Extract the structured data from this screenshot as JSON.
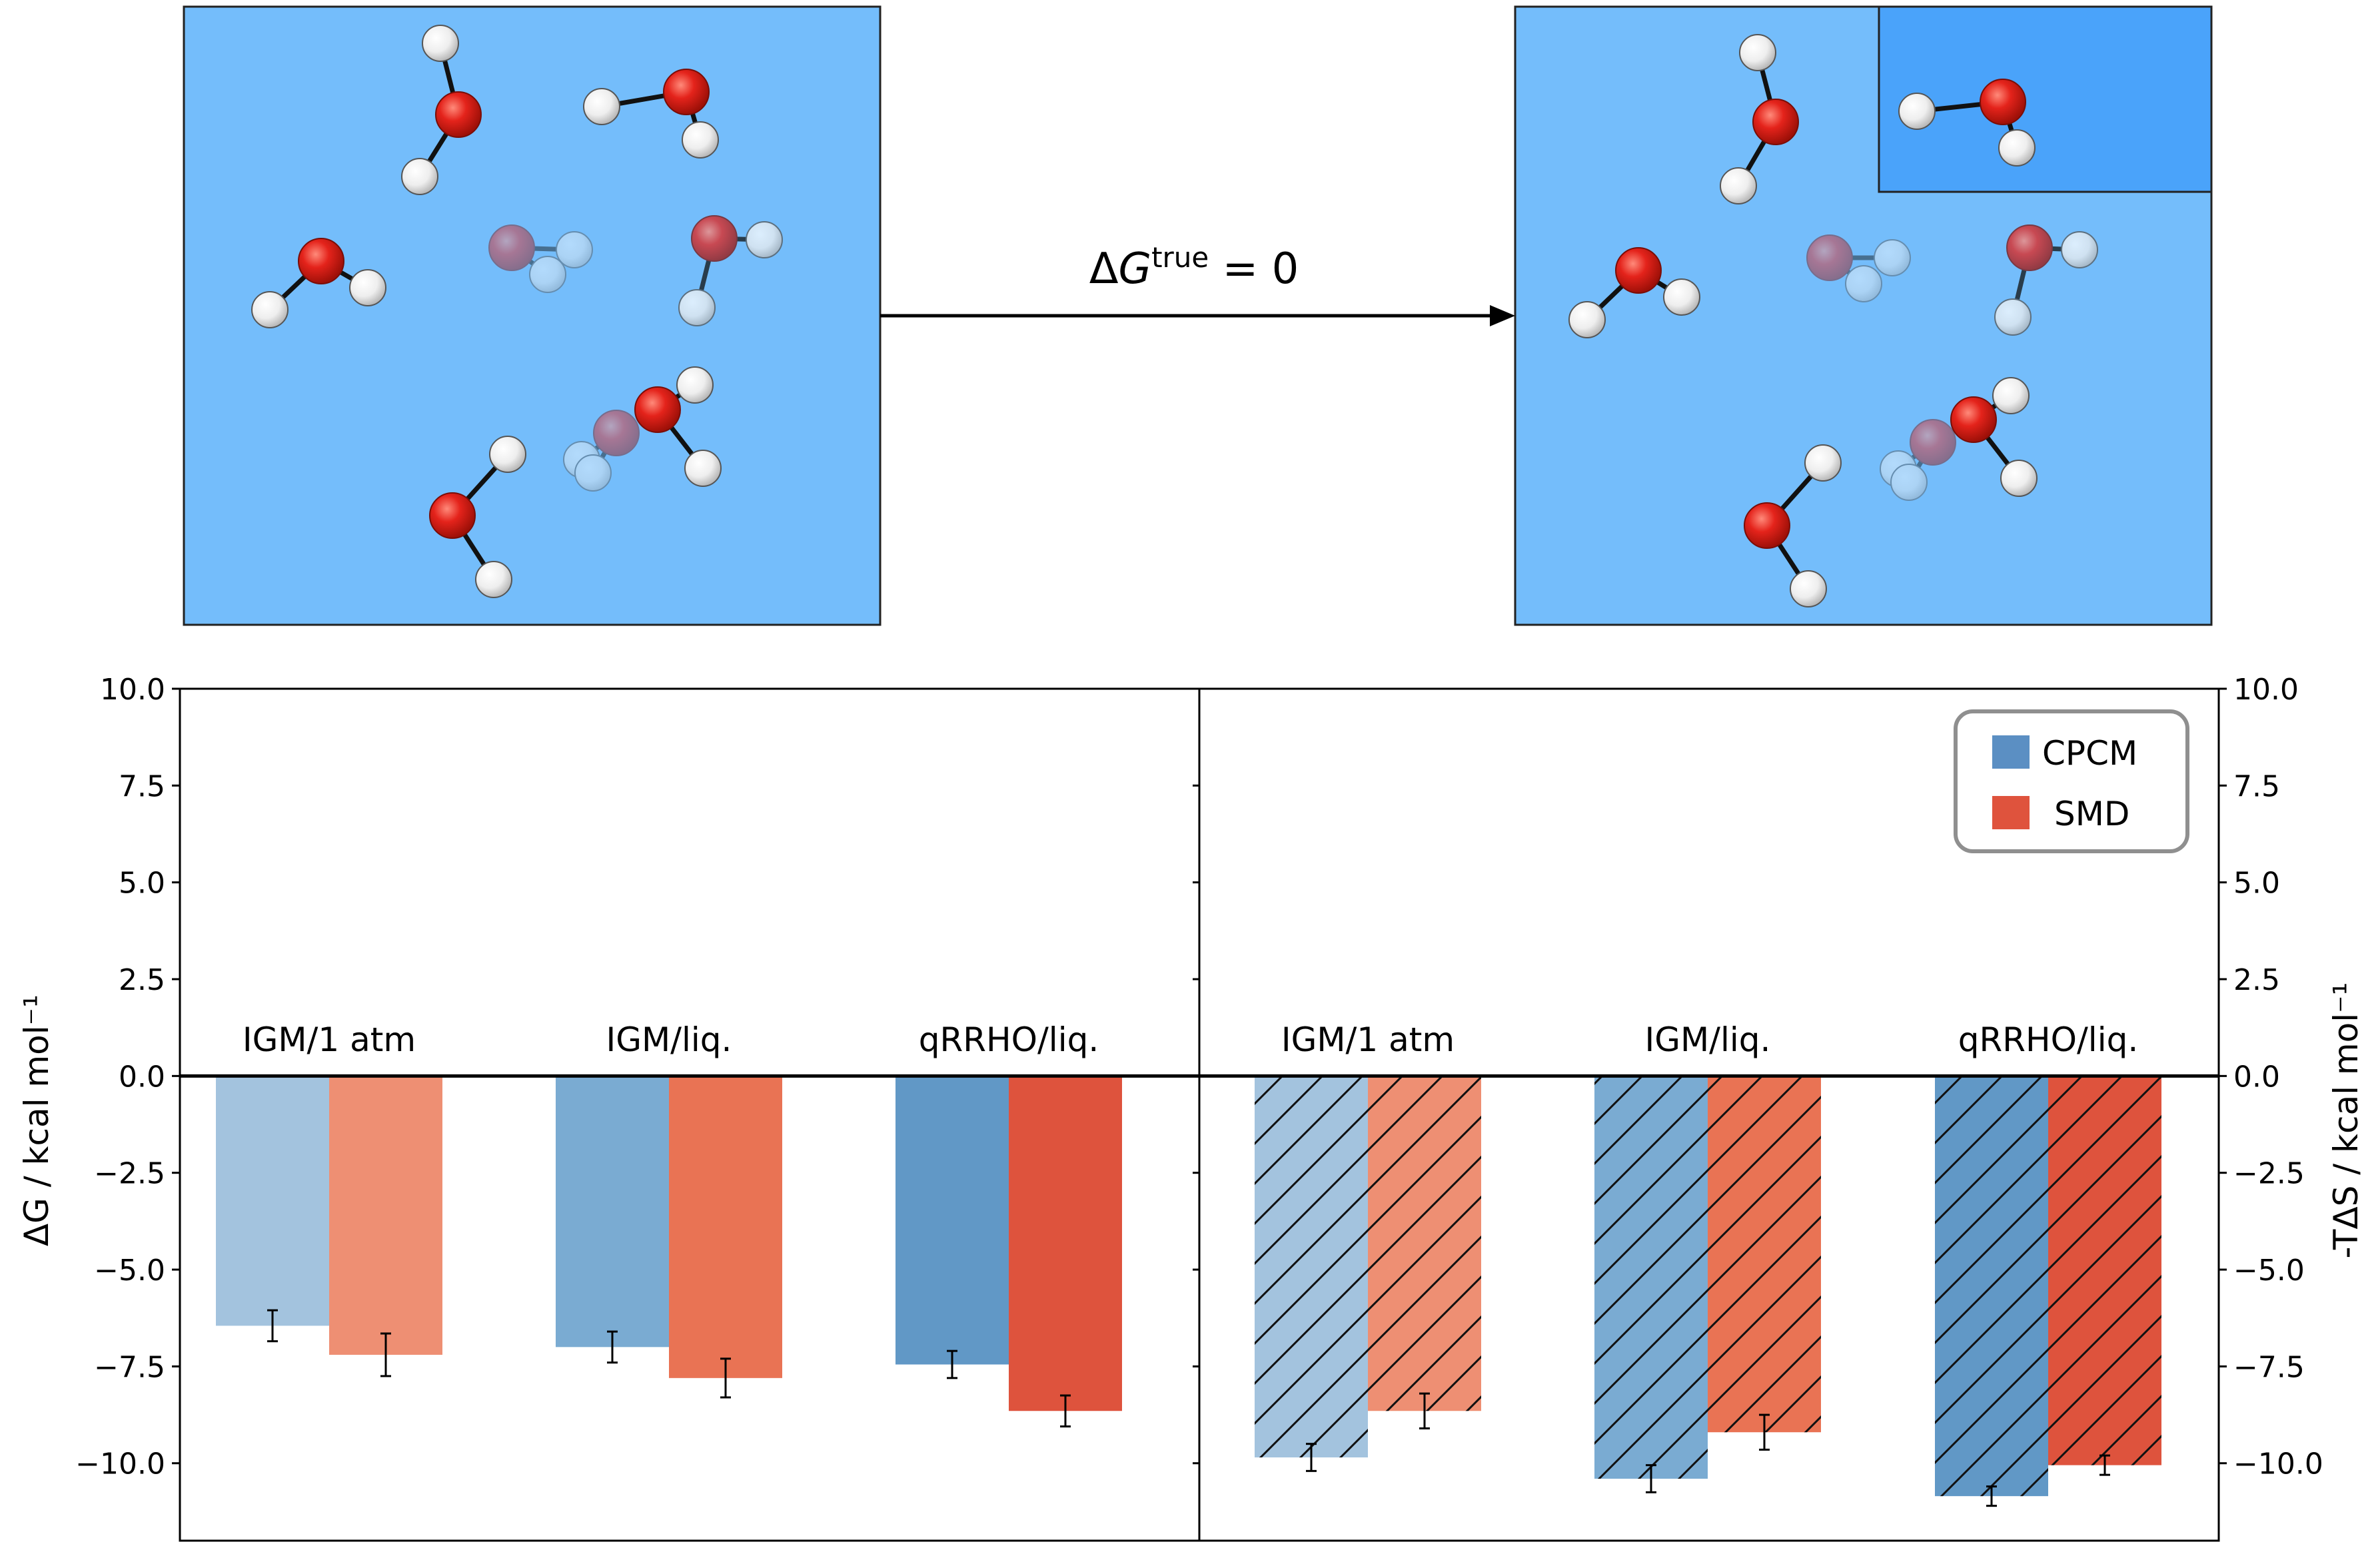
{
  "schematic": {
    "arrow_label": {
      "delta": "Δ",
      "symbol": "G",
      "superscript": "true",
      "suffix": " = 0"
    },
    "box_color": "#74bdfb",
    "inset_color": "#4aa3fa",
    "oxygen_color": "#e4231b",
    "hydrogen_color": "#f2f2f2"
  },
  "chart_data": [
    {
      "type": "bar",
      "ylabel": "ΔG / kcal mol⁻¹",
      "ylim": [
        -12.0,
        10.0
      ],
      "yticks": [
        "10.0",
        "7.5",
        "5.0",
        "2.5",
        "0.0",
        "−2.5",
        "−5.0",
        "−7.5",
        "−10.0"
      ],
      "ytick_values": [
        10.0,
        7.5,
        5.0,
        2.5,
        0.0,
        -2.5,
        -5.0,
        -7.5,
        -10.0
      ],
      "categories": [
        "IGM/1 atm",
        "IGM/liq.",
        "qRRHO/liq."
      ],
      "series": [
        {
          "name": "CPCM",
          "values": [
            -6.45,
            -7.0,
            -7.45
          ],
          "errors": [
            0.4,
            0.4,
            0.35
          ],
          "colors": [
            "#a3c3de",
            "#7aabd2",
            "#6198c6"
          ]
        },
        {
          "name": "SMD",
          "values": [
            -7.2,
            -7.8,
            -8.65
          ],
          "errors": [
            0.55,
            0.5,
            0.4
          ],
          "colors": [
            "#ee8f73",
            "#e97354",
            "#de533d"
          ]
        }
      ],
      "hatched": false
    },
    {
      "type": "bar",
      "ylabel": "-TΔS / kcal mol⁻¹",
      "ylim": [
        -12.0,
        10.0
      ],
      "yticks": [
        "10.0",
        "7.5",
        "5.0",
        "2.5",
        "0.0",
        "−2.5",
        "−5.0",
        "−7.5",
        "−10.0"
      ],
      "ytick_values": [
        10.0,
        7.5,
        5.0,
        2.5,
        0.0,
        -2.5,
        -5.0,
        -7.5,
        -10.0
      ],
      "categories": [
        "IGM/1 atm",
        "IGM/liq.",
        "qRRHO/liq."
      ],
      "series": [
        {
          "name": "CPCM",
          "values": [
            -9.85,
            -10.4,
            -10.85
          ],
          "errors": [
            0.35,
            0.35,
            0.25
          ],
          "colors": [
            "#a3c3de",
            "#7aabd2",
            "#6198c6"
          ]
        },
        {
          "name": "SMD",
          "values": [
            -8.65,
            -9.2,
            -10.05
          ],
          "errors": [
            0.45,
            0.45,
            0.25
          ],
          "colors": [
            "#ee8f73",
            "#e97354",
            "#de533d"
          ]
        }
      ],
      "hatched": true,
      "legend": {
        "position": "top-right",
        "entries": [
          {
            "label": "CPCM",
            "color": "#5b8fc3"
          },
          {
            "label": "SMD",
            "color": "#df533d"
          }
        ]
      }
    }
  ]
}
